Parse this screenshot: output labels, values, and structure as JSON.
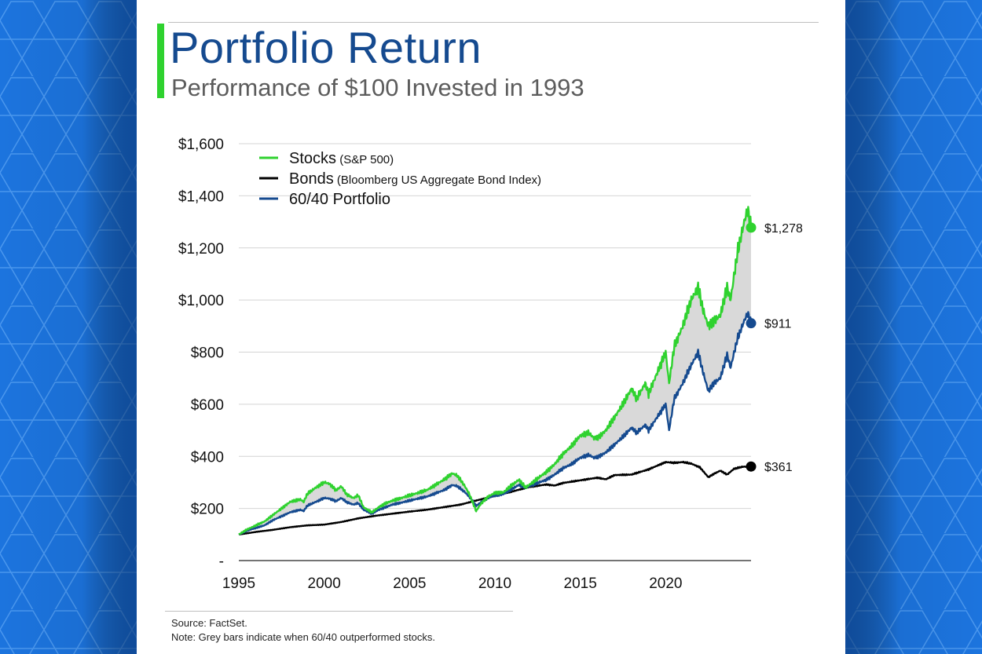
{
  "header": {
    "title": "Portfolio Return",
    "subtitle": "Performance of $100 Invested in 1993"
  },
  "footer": {
    "source": "Source: FactSet.",
    "note": "Note: Grey bars indicate when 60/40 outperformed stocks."
  },
  "colors": {
    "background": "#1c74de",
    "stocks": "#2fd22f",
    "bonds": "#000000",
    "portfolio": "#154a8f",
    "outperform_fill": "#d9d9d9",
    "title": "#154a8f",
    "accent": "#2fd22f"
  },
  "chart_data": {
    "type": "line",
    "y_tick_labels": [
      "-",
      "$200",
      "$400",
      "$600",
      "$800",
      "$1,000",
      "$1,200",
      "$1,400",
      "$1,600"
    ],
    "x_tick_labels": [
      "1995",
      "2000",
      "2005",
      "2010",
      "2015",
      "2020"
    ],
    "x_ticks": [
      1995,
      2000,
      2005,
      2010,
      2015,
      2020
    ],
    "xlim": [
      1995,
      2025
    ],
    "ylim": [
      0,
      1600
    ],
    "grid": true,
    "legend_position": "top-left",
    "legend": [
      {
        "key": "stocks",
        "name": "Stocks",
        "detail": "(S&P 500)"
      },
      {
        "key": "bonds",
        "name": "Bonds",
        "detail": "(Bloomberg US Aggregate Bond Index)"
      },
      {
        "key": "portfolio",
        "name": "60/40 Portfolio",
        "detail": ""
      }
    ],
    "series": [
      {
        "key": "stocks",
        "name": "Stocks",
        "color": "#2fd22f",
        "x": [
          1995.0,
          1995.5,
          1996.0,
          1996.5,
          1997.0,
          1997.5,
          1998.0,
          1998.6,
          1998.8,
          1999.0,
          1999.5,
          2000.0,
          2000.3,
          2000.7,
          2001.0,
          2001.3,
          2001.7,
          2002.0,
          2002.3,
          2002.8,
          2003.2,
          2003.6,
          2004.0,
          2004.5,
          2005.0,
          2005.5,
          2006.0,
          2006.5,
          2007.0,
          2007.5,
          2007.8,
          2008.2,
          2008.5,
          2008.9,
          2009.2,
          2009.6,
          2010.0,
          2010.5,
          2011.0,
          2011.4,
          2011.8,
          2012.2,
          2012.6,
          2013.0,
          2013.5,
          2014.0,
          2014.5,
          2015.0,
          2015.5,
          2015.8,
          2016.1,
          2016.5,
          2017.0,
          2017.5,
          2018.0,
          2018.3,
          2018.8,
          2019.0,
          2019.5,
          2020.0,
          2020.2,
          2020.5,
          2021.0,
          2021.5,
          2021.9,
          2022.2,
          2022.5,
          2022.8,
          2023.2,
          2023.6,
          2023.8,
          2024.2,
          2024.6,
          2024.8,
          2025.0
        ],
        "y": [
          100,
          120,
          135,
          150,
          175,
          200,
          225,
          235,
          225,
          255,
          280,
          300,
          295,
          270,
          285,
          255,
          240,
          250,
          205,
          185,
          205,
          220,
          230,
          240,
          250,
          260,
          270,
          290,
          310,
          335,
          325,
          290,
          255,
          190,
          220,
          245,
          260,
          262,
          290,
          310,
          280,
          300,
          320,
          340,
          370,
          410,
          440,
          480,
          490,
          470,
          475,
          500,
          550,
          600,
          660,
          620,
          680,
          640,
          720,
          800,
          680,
          820,
          900,
          1000,
          1050,
          960,
          900,
          920,
          940,
          1050,
          1000,
          1180,
          1300,
          1350,
          1278
        ]
      },
      {
        "key": "portfolio",
        "name": "60/40 Portfolio",
        "color": "#154a8f",
        "x": [
          1995.0,
          1995.5,
          1996.0,
          1996.5,
          1997.0,
          1997.5,
          1998.0,
          1998.6,
          1998.8,
          1999.0,
          1999.5,
          2000.0,
          2000.3,
          2000.7,
          2001.0,
          2001.3,
          2001.7,
          2002.0,
          2002.3,
          2002.8,
          2003.2,
          2003.6,
          2004.0,
          2004.5,
          2005.0,
          2005.5,
          2006.0,
          2006.5,
          2007.0,
          2007.5,
          2007.8,
          2008.2,
          2008.5,
          2008.9,
          2009.2,
          2009.6,
          2010.0,
          2010.5,
          2011.0,
          2011.4,
          2011.8,
          2012.2,
          2012.6,
          2013.0,
          2013.5,
          2014.0,
          2014.5,
          2015.0,
          2015.5,
          2015.8,
          2016.1,
          2016.5,
          2017.0,
          2017.5,
          2018.0,
          2018.3,
          2018.8,
          2019.0,
          2019.5,
          2020.0,
          2020.2,
          2020.5,
          2021.0,
          2021.5,
          2021.9,
          2022.2,
          2022.5,
          2022.8,
          2023.2,
          2023.6,
          2023.8,
          2024.2,
          2024.6,
          2024.8,
          2025.0
        ],
        "y": [
          100,
          115,
          125,
          135,
          155,
          170,
          185,
          195,
          190,
          210,
          225,
          240,
          238,
          228,
          240,
          225,
          215,
          220,
          195,
          180,
          195,
          205,
          215,
          222,
          230,
          238,
          245,
          258,
          270,
          290,
          285,
          265,
          245,
          210,
          225,
          240,
          250,
          255,
          275,
          290,
          280,
          290,
          300,
          310,
          330,
          355,
          370,
          395,
          405,
          395,
          400,
          415,
          445,
          475,
          510,
          490,
          520,
          500,
          550,
          600,
          500,
          620,
          680,
          750,
          800,
          720,
          650,
          680,
          700,
          790,
          740,
          850,
          920,
          950,
          911
        ]
      },
      {
        "key": "bonds",
        "name": "Bonds",
        "color": "#000000",
        "x": [
          1995.0,
          1996.0,
          1997.0,
          1998.0,
          1999.0,
          2000.0,
          2001.0,
          2002.0,
          2003.0,
          2004.0,
          2005.0,
          2006.0,
          2007.0,
          2008.0,
          2009.0,
          2010.0,
          2011.0,
          2012.0,
          2013.0,
          2013.5,
          2014.0,
          2015.0,
          2016.0,
          2016.5,
          2017.0,
          2018.0,
          2019.0,
          2020.0,
          2020.5,
          2021.0,
          2021.5,
          2022.0,
          2022.5,
          2022.8,
          2023.2,
          2023.6,
          2024.0,
          2024.5,
          2025.0
        ],
        "y": [
          100,
          110,
          118,
          128,
          135,
          138,
          148,
          162,
          172,
          180,
          188,
          195,
          205,
          215,
          232,
          248,
          265,
          282,
          292,
          288,
          298,
          308,
          318,
          312,
          328,
          330,
          350,
          378,
          375,
          378,
          372,
          358,
          320,
          332,
          345,
          330,
          352,
          360,
          361
        ]
      }
    ],
    "end_labels": [
      {
        "key": "stocks",
        "value": 1278,
        "label": "$1,278"
      },
      {
        "key": "portfolio",
        "value": 911,
        "label": "$911"
      },
      {
        "key": "bonds",
        "value": 361,
        "label": "$361"
      }
    ]
  }
}
